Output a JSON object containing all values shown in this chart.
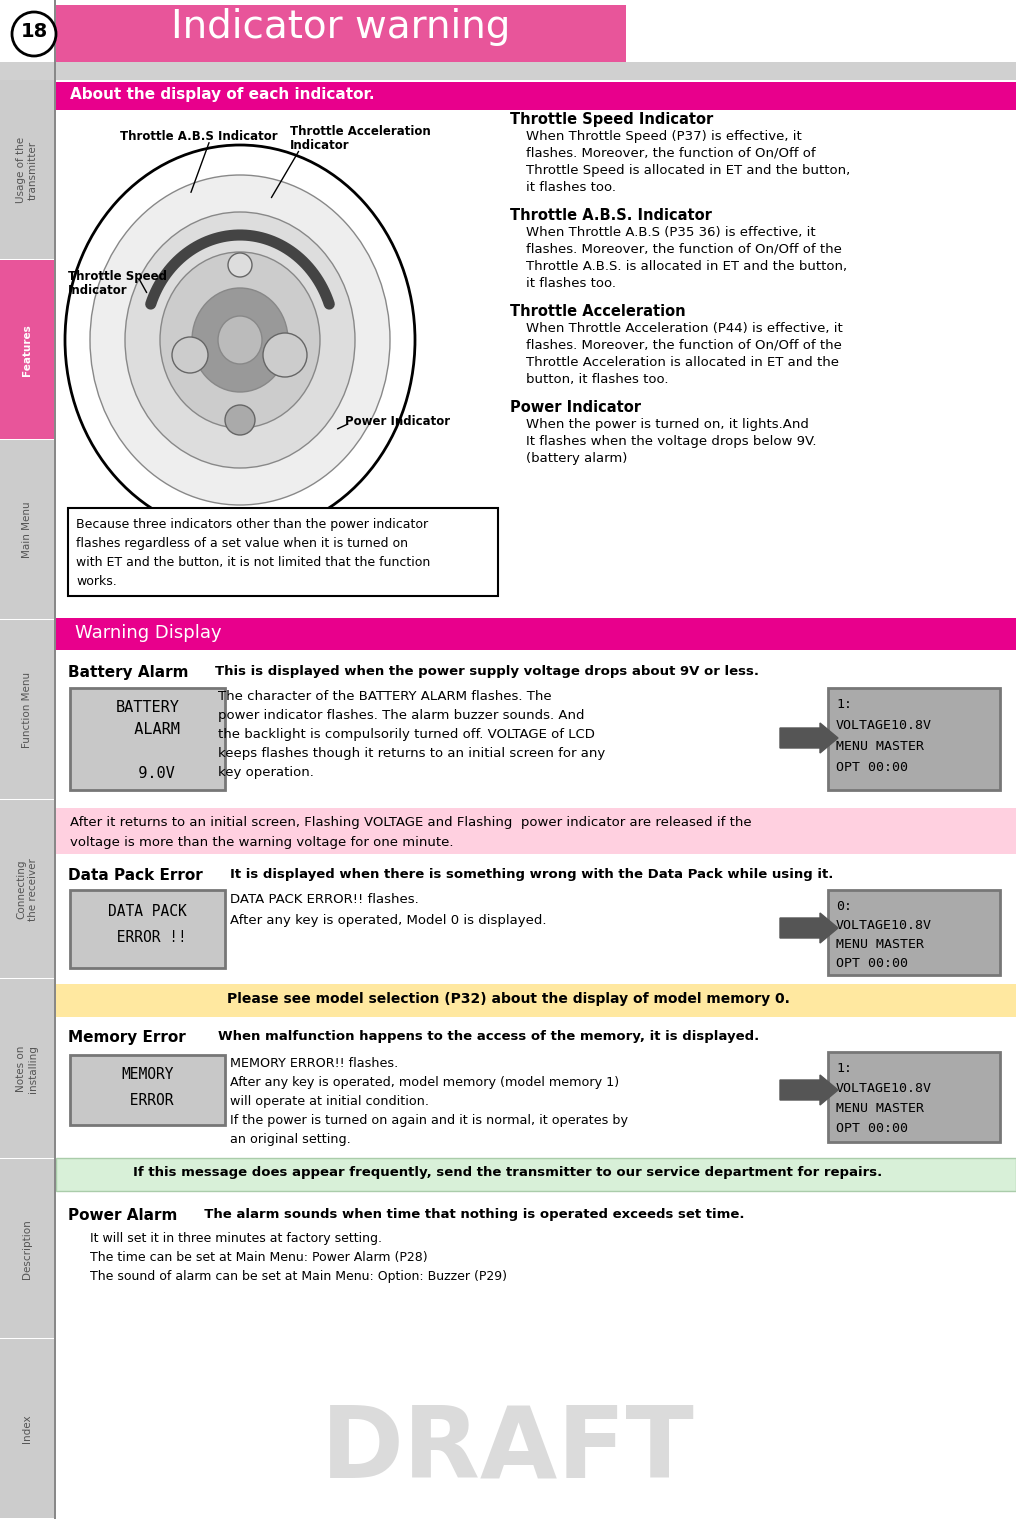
{
  "page_number": "18",
  "title": "Indicator warning",
  "title_bg": "#E8559A",
  "title_color": "#FFFFFF",
  "section1_header": "About the display of each indicator.",
  "section1_header_bg": "#E8008C",
  "section1_header_color": "#FFFFFF",
  "warning_display_header": "Warning Display",
  "warning_display_bg": "#E8008C",
  "warning_display_color": "#FFFFFF",
  "sidebar_labels": [
    "Usage of the\ntransmitter",
    "Features",
    "Main Menu",
    "Function Menu",
    "Connecting\nthe receiver",
    "Notes on\ninstalling",
    "Description",
    "Index"
  ],
  "sidebar_highlight_index": 1,
  "sidebar_highlight_color": "#E8559A",
  "sidebar_normal_color": "#CCCCCC",
  "sidebar_text_color": "#FFFFFF",
  "note_box_text": "Because three indicators other than the power indicator\nflashes regardless of a set value when it is turned on\nwith ET and the button, it is not limited that the function\nworks.",
  "battery_alarm_label": "Battery Alarm",
  "battery_alarm_bold": "This is displayed when the power supply voltage drops about 9V or less.",
  "battery_alarm_lcd_lines": [
    "BATTERY",
    "  ALARM",
    "",
    "  9.0V"
  ],
  "battery_alarm_text": "The character of the BATTERY ALARM flashes. The\npower indicator flashes. The alarm buzzer sounds. And\nthe backlight is compulsorily turned off. VOLTAGE of LCD\nkeeps flashes though it returns to an initial screen for any\nkey operation.",
  "battery_alarm_screen": "1:\nVOLTAGE10.8V\nMENU MASTER\nOPT 00:00",
  "voltage_note": "After it returns to an initial screen, Flashing VOLTAGE and Flashing  power indicator are released if the\nvoltage is more than the warning voltage for one minute.",
  "voltage_note_bg": "#FFD0E0",
  "datapack_label": "Data Pack Error",
  "datapack_bold": "It is displayed when there is something wrong with the Data Pack while using it.",
  "datapack_lcd_lines": [
    "DATA PACK",
    " ERROR !!"
  ],
  "datapack_text": "DATA PACK ERROR!! flashes.\nAfter any key is operated, Model 0 is displayed.",
  "datapack_screen": "0:\nVOLTAGE10.8V\nMENU MASTER\nOPT 00:00",
  "model_note": "Please see model selection (P32) about the display of model memory 0.",
  "model_note_bg": "#FFE8A0",
  "memory_label": "Memory Error",
  "memory_bold": "When malfunction happens to the access of the memory, it is displayed.",
  "memory_lcd_lines": [
    "MEMORY",
    " ERROR"
  ],
  "memory_text": "MEMORY ERROR!! flashes.\nAfter any key is operated, model memory (model memory 1)\nwill operate at initial condition.\nIf the power is turned on again and it is normal, it operates by\nan original setting.",
  "memory_screen": "1:\nVOLTAGE10.8V\nMENU MASTER\nOPT 00:00",
  "repair_note": "If this message does appear frequently, send the transmitter to our service department for repairs.",
  "repair_note_bg": "#D8F0D8",
  "power_alarm_label": "Power Alarm",
  "power_alarm_bold": "The alarm sounds when time that nothing is operated exceeds set time.",
  "power_alarm_text": "It will set it in three minutes at factory setting.\nThe time can be set at Main Menu: Power Alarm (P28)\nThe sound of alarm can be set at Main Menu: Option: Buzzer (P29)",
  "draft_text": "DRAFT",
  "bg_color": "#FFFFFF",
  "lcd_bg": "#C8C8C8",
  "screen_bg": "#AAAAAA",
  "page_bg": "#FFFFFF",
  "gray_bar_color": "#D0D0D0"
}
